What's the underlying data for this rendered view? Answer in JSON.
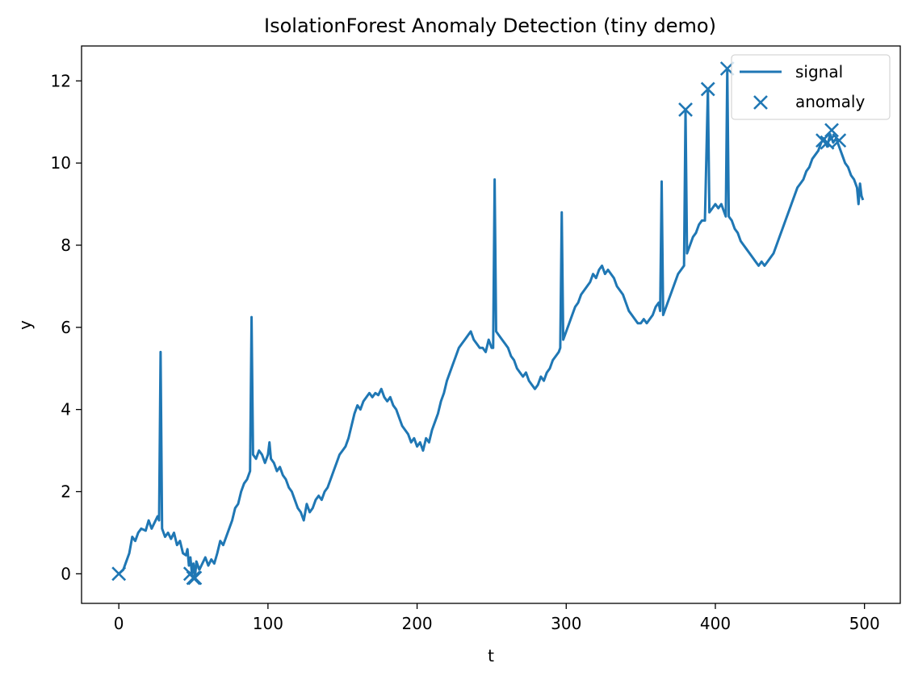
{
  "chart_data": {
    "type": "line",
    "title": "IsolationForest Anomaly Detection (tiny demo)",
    "xlabel": "t",
    "ylabel": "y",
    "xlim": [
      -25,
      524
    ],
    "ylim": [
      -0.72,
      12.85
    ],
    "xticks": [
      0,
      100,
      200,
      300,
      400,
      500
    ],
    "yticks": [
      0,
      2,
      4,
      6,
      8,
      10,
      12
    ],
    "grid": false,
    "legend_position": "top-right",
    "colors": {
      "series": "#1f77b4"
    },
    "series": [
      {
        "name": "signal",
        "kind": "line",
        "points": [
          [
            0,
            0.0
          ],
          [
            3,
            0.1
          ],
          [
            5,
            0.3
          ],
          [
            7,
            0.5
          ],
          [
            9,
            0.9
          ],
          [
            11,
            0.8
          ],
          [
            13,
            1.0
          ],
          [
            15,
            1.1
          ],
          [
            18,
            1.05
          ],
          [
            20,
            1.3
          ],
          [
            22,
            1.1
          ],
          [
            24,
            1.25
          ],
          [
            26,
            1.4
          ],
          [
            27,
            1.3
          ],
          [
            28,
            5.4
          ],
          [
            29,
            1.1
          ],
          [
            31,
            0.9
          ],
          [
            33,
            1.0
          ],
          [
            35,
            0.85
          ],
          [
            37,
            1.0
          ],
          [
            39,
            0.7
          ],
          [
            41,
            0.8
          ],
          [
            43,
            0.5
          ],
          [
            45,
            0.45
          ],
          [
            46,
            0.6
          ],
          [
            47,
            0.2
          ],
          [
            48,
            0.4
          ],
          [
            49,
            0.0
          ],
          [
            50,
            0.25
          ],
          [
            51,
            -0.1
          ],
          [
            52,
            0.3
          ],
          [
            54,
            0.1
          ],
          [
            56,
            0.25
          ],
          [
            58,
            0.4
          ],
          [
            60,
            0.2
          ],
          [
            62,
            0.35
          ],
          [
            64,
            0.25
          ],
          [
            66,
            0.5
          ],
          [
            68,
            0.8
          ],
          [
            70,
            0.7
          ],
          [
            72,
            0.9
          ],
          [
            74,
            1.1
          ],
          [
            76,
            1.3
          ],
          [
            78,
            1.6
          ],
          [
            80,
            1.7
          ],
          [
            82,
            2.0
          ],
          [
            84,
            2.2
          ],
          [
            86,
            2.3
          ],
          [
            88,
            2.5
          ],
          [
            89,
            6.25
          ],
          [
            90,
            2.9
          ],
          [
            92,
            2.8
          ],
          [
            94,
            3.0
          ],
          [
            96,
            2.9
          ],
          [
            98,
            2.7
          ],
          [
            100,
            2.9
          ],
          [
            101,
            3.2
          ],
          [
            102,
            2.8
          ],
          [
            104,
            2.7
          ],
          [
            106,
            2.5
          ],
          [
            108,
            2.6
          ],
          [
            110,
            2.4
          ],
          [
            112,
            2.3
          ],
          [
            114,
            2.1
          ],
          [
            116,
            2.0
          ],
          [
            118,
            1.8
          ],
          [
            120,
            1.6
          ],
          [
            122,
            1.5
          ],
          [
            124,
            1.3
          ],
          [
            126,
            1.7
          ],
          [
            128,
            1.5
          ],
          [
            130,
            1.6
          ],
          [
            132,
            1.8
          ],
          [
            134,
            1.9
          ],
          [
            136,
            1.8
          ],
          [
            138,
            2.0
          ],
          [
            140,
            2.1
          ],
          [
            142,
            2.3
          ],
          [
            144,
            2.5
          ],
          [
            146,
            2.7
          ],
          [
            148,
            2.9
          ],
          [
            150,
            3.0
          ],
          [
            152,
            3.1
          ],
          [
            154,
            3.3
          ],
          [
            156,
            3.6
          ],
          [
            158,
            3.9
          ],
          [
            160,
            4.1
          ],
          [
            162,
            4.0
          ],
          [
            164,
            4.2
          ],
          [
            166,
            4.3
          ],
          [
            168,
            4.4
          ],
          [
            170,
            4.3
          ],
          [
            172,
            4.4
          ],
          [
            174,
            4.35
          ],
          [
            176,
            4.5
          ],
          [
            178,
            4.3
          ],
          [
            180,
            4.2
          ],
          [
            182,
            4.3
          ],
          [
            184,
            4.1
          ],
          [
            186,
            4.0
          ],
          [
            188,
            3.8
          ],
          [
            190,
            3.6
          ],
          [
            192,
            3.5
          ],
          [
            194,
            3.4
          ],
          [
            196,
            3.2
          ],
          [
            198,
            3.3
          ],
          [
            200,
            3.1
          ],
          [
            202,
            3.2
          ],
          [
            204,
            3.0
          ],
          [
            206,
            3.3
          ],
          [
            208,
            3.2
          ],
          [
            210,
            3.5
          ],
          [
            212,
            3.7
          ],
          [
            214,
            3.9
          ],
          [
            216,
            4.2
          ],
          [
            218,
            4.4
          ],
          [
            220,
            4.7
          ],
          [
            222,
            4.9
          ],
          [
            224,
            5.1
          ],
          [
            226,
            5.3
          ],
          [
            228,
            5.5
          ],
          [
            230,
            5.6
          ],
          [
            232,
            5.7
          ],
          [
            234,
            5.8
          ],
          [
            236,
            5.9
          ],
          [
            238,
            5.7
          ],
          [
            240,
            5.6
          ],
          [
            242,
            5.5
          ],
          [
            244,
            5.5
          ],
          [
            246,
            5.4
          ],
          [
            248,
            5.7
          ],
          [
            249,
            5.6
          ],
          [
            250,
            5.5
          ],
          [
            251,
            5.5
          ],
          [
            252,
            9.6
          ],
          [
            253,
            5.9
          ],
          [
            255,
            5.8
          ],
          [
            257,
            5.7
          ],
          [
            259,
            5.6
          ],
          [
            261,
            5.5
          ],
          [
            263,
            5.3
          ],
          [
            265,
            5.2
          ],
          [
            267,
            5.0
          ],
          [
            269,
            4.9
          ],
          [
            271,
            4.8
          ],
          [
            273,
            4.9
          ],
          [
            275,
            4.7
          ],
          [
            277,
            4.6
          ],
          [
            279,
            4.5
          ],
          [
            281,
            4.6
          ],
          [
            283,
            4.8
          ],
          [
            285,
            4.7
          ],
          [
            287,
            4.9
          ],
          [
            289,
            5.0
          ],
          [
            291,
            5.2
          ],
          [
            293,
            5.3
          ],
          [
            295,
            5.4
          ],
          [
            296,
            5.5
          ],
          [
            297,
            8.8
          ],
          [
            298,
            5.7
          ],
          [
            300,
            5.9
          ],
          [
            302,
            6.1
          ],
          [
            304,
            6.3
          ],
          [
            306,
            6.5
          ],
          [
            308,
            6.6
          ],
          [
            310,
            6.8
          ],
          [
            312,
            6.9
          ],
          [
            314,
            7.0
          ],
          [
            316,
            7.1
          ],
          [
            318,
            7.3
          ],
          [
            320,
            7.2
          ],
          [
            322,
            7.4
          ],
          [
            324,
            7.5
          ],
          [
            326,
            7.3
          ],
          [
            328,
            7.4
          ],
          [
            330,
            7.3
          ],
          [
            332,
            7.2
          ],
          [
            334,
            7.0
          ],
          [
            336,
            6.9
          ],
          [
            338,
            6.8
          ],
          [
            340,
            6.6
          ],
          [
            342,
            6.4
          ],
          [
            344,
            6.3
          ],
          [
            346,
            6.2
          ],
          [
            348,
            6.1
          ],
          [
            350,
            6.1
          ],
          [
            352,
            6.2
          ],
          [
            354,
            6.1
          ],
          [
            356,
            6.2
          ],
          [
            358,
            6.3
          ],
          [
            360,
            6.5
          ],
          [
            362,
            6.6
          ],
          [
            363,
            6.4
          ],
          [
            364,
            9.55
          ],
          [
            365,
            6.3
          ],
          [
            367,
            6.5
          ],
          [
            369,
            6.7
          ],
          [
            371,
            6.9
          ],
          [
            373,
            7.1
          ],
          [
            375,
            7.3
          ],
          [
            377,
            7.4
          ],
          [
            379,
            7.5
          ],
          [
            380,
            11.3
          ],
          [
            381,
            7.8
          ],
          [
            383,
            8.0
          ],
          [
            385,
            8.2
          ],
          [
            387,
            8.3
          ],
          [
            389,
            8.5
          ],
          [
            391,
            8.6
          ],
          [
            393,
            8.6
          ],
          [
            395,
            11.8
          ],
          [
            396,
            8.8
          ],
          [
            398,
            8.9
          ],
          [
            400,
            9.0
          ],
          [
            402,
            8.9
          ],
          [
            404,
            9.0
          ],
          [
            406,
            8.8
          ],
          [
            407,
            8.7
          ],
          [
            408,
            12.3
          ],
          [
            409,
            8.7
          ],
          [
            411,
            8.6
          ],
          [
            413,
            8.4
          ],
          [
            415,
            8.3
          ],
          [
            417,
            8.1
          ],
          [
            419,
            8.0
          ],
          [
            421,
            7.9
          ],
          [
            423,
            7.8
          ],
          [
            425,
            7.7
          ],
          [
            427,
            7.6
          ],
          [
            429,
            7.5
          ],
          [
            431,
            7.6
          ],
          [
            433,
            7.5
          ],
          [
            435,
            7.6
          ],
          [
            437,
            7.7
          ],
          [
            439,
            7.8
          ],
          [
            441,
            8.0
          ],
          [
            443,
            8.2
          ],
          [
            445,
            8.4
          ],
          [
            447,
            8.6
          ],
          [
            449,
            8.8
          ],
          [
            451,
            9.0
          ],
          [
            453,
            9.2
          ],
          [
            455,
            9.4
          ],
          [
            457,
            9.5
          ],
          [
            459,
            9.6
          ],
          [
            461,
            9.8
          ],
          [
            463,
            9.9
          ],
          [
            465,
            10.1
          ],
          [
            467,
            10.2
          ],
          [
            469,
            10.3
          ],
          [
            471,
            10.5
          ],
          [
            473,
            10.6
          ],
          [
            475,
            10.4
          ],
          [
            477,
            10.7
          ],
          [
            479,
            10.5
          ],
          [
            481,
            10.6
          ],
          [
            483,
            10.4
          ],
          [
            485,
            10.2
          ],
          [
            487,
            10.0
          ],
          [
            489,
            9.9
          ],
          [
            491,
            9.7
          ],
          [
            493,
            9.6
          ],
          [
            495,
            9.4
          ],
          [
            496,
            9.0
          ],
          [
            497,
            9.5
          ],
          [
            498,
            9.2
          ],
          [
            499,
            9.1
          ]
        ]
      },
      {
        "name": "anomaly",
        "kind": "scatter",
        "marker": "x",
        "points": [
          [
            0,
            0.0
          ],
          [
            48,
            0.0
          ],
          [
            50,
            -0.1
          ],
          [
            51,
            -0.1
          ],
          [
            380,
            11.3
          ],
          [
            395,
            11.8
          ],
          [
            408,
            12.3
          ],
          [
            472,
            10.55
          ],
          [
            475,
            10.5
          ],
          [
            478,
            10.8
          ],
          [
            483,
            10.55
          ]
        ]
      }
    ]
  }
}
